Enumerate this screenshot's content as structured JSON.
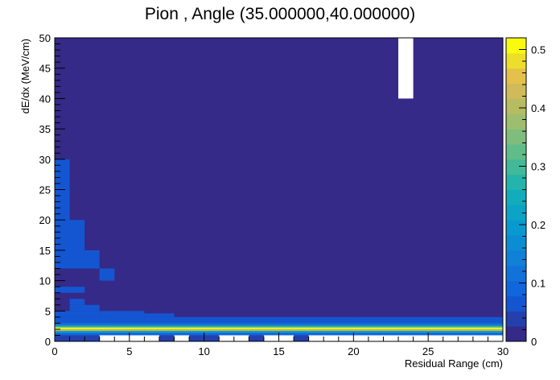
{
  "chart_data": {
    "type": "heatmap",
    "title": "Pion , Angle (35.000000,40.000000)",
    "xlabel": "Residual Range (cm)",
    "ylabel": "dE/dx (MeV/cm)",
    "xlim": [
      0,
      30
    ],
    "ylim": [
      0,
      50
    ],
    "x_bin_width": 1,
    "y_bin_width": 1,
    "x_ticks": [
      "0",
      "5",
      "10",
      "15",
      "20",
      "25",
      "30"
    ],
    "y_ticks": [
      "0",
      "5",
      "10",
      "15",
      "20",
      "25",
      "30",
      "35",
      "40",
      "45",
      "50"
    ],
    "colorbar": {
      "range": [
        0,
        0.52
      ],
      "ticks": [
        "0",
        "0.1",
        "0.2",
        "0.3",
        "0.4",
        "0.5"
      ],
      "palette": "parula",
      "levels": 20
    },
    "background_value": 0.012,
    "empty_bins": [
      {
        "x": [
          23,
          24
        ],
        "y": [
          40,
          50
        ]
      },
      {
        "x": [
          8,
          9
        ],
        "y": [
          0,
          1
        ]
      },
      {
        "x": [
          11,
          13
        ],
        "y": [
          0,
          1
        ]
      },
      {
        "x": [
          3,
          7
        ],
        "y": [
          0,
          1
        ]
      },
      {
        "x": [
          14,
          16
        ],
        "y": [
          0,
          1
        ]
      },
      {
        "x": [
          17,
          30
        ],
        "y": [
          0,
          1
        ]
      }
    ],
    "cells": [
      {
        "x": [
          0,
          1
        ],
        "y": [
          20,
          30
        ],
        "v": 0.07
      },
      {
        "x": [
          0,
          2
        ],
        "y": [
          13,
          20
        ],
        "v": 0.07
      },
      {
        "x": [
          0,
          3
        ],
        "y": [
          12,
          13
        ],
        "v": 0.07
      },
      {
        "x": [
          2,
          3
        ],
        "y": [
          13,
          15
        ],
        "v": 0.07
      },
      {
        "x": [
          3,
          4
        ],
        "y": [
          10,
          12
        ],
        "v": 0.07
      },
      {
        "x": [
          0,
          2
        ],
        "y": [
          8,
          9
        ],
        "v": 0.07
      },
      {
        "x": [
          1,
          2
        ],
        "y": [
          6,
          7
        ],
        "v": 0.07
      },
      {
        "x": [
          1,
          3
        ],
        "y": [
          5,
          6
        ],
        "v": 0.07
      },
      {
        "x": [
          0,
          3
        ],
        "y": [
          4,
          5
        ],
        "v": 0.06
      },
      {
        "x": [
          0,
          4
        ],
        "y": [
          3,
          4
        ],
        "v": 0.06
      },
      {
        "x": [
          3,
          6
        ],
        "y": [
          4,
          5
        ],
        "v": 0.07
      },
      {
        "x": [
          4,
          8
        ],
        "y": [
          4,
          4.6
        ],
        "v": 0.07
      },
      {
        "x": [
          0,
          8
        ],
        "y": [
          3,
          4
        ],
        "v": 0.07
      },
      {
        "x": [
          8,
          20
        ],
        "y": [
          3,
          4
        ],
        "v": 0.06
      },
      {
        "x": [
          20,
          30
        ],
        "y": [
          3,
          4
        ],
        "v": 0.055
      },
      {
        "x": [
          0,
          30
        ],
        "y": [
          2.6,
          3
        ],
        "v": 0.12
      },
      {
        "x": [
          0,
          30
        ],
        "y": [
          2.3,
          2.6
        ],
        "v": 0.27
      },
      {
        "x": [
          0,
          30
        ],
        "y": [
          2,
          2.3
        ],
        "v": 0.5
      },
      {
        "x": [
          0,
          30
        ],
        "y": [
          1.7,
          2
        ],
        "v": 0.41
      },
      {
        "x": [
          0,
          30
        ],
        "y": [
          1.4,
          1.7
        ],
        "v": 0.22
      },
      {
        "x": [
          0,
          30
        ],
        "y": [
          1,
          1.4
        ],
        "v": 0.08
      },
      {
        "x": [
          0,
          3
        ],
        "y": [
          0,
          1
        ],
        "v": 0.03
      },
      {
        "x": [
          7,
          8
        ],
        "y": [
          0,
          1
        ],
        "v": 0.03
      },
      {
        "x": [
          9,
          11
        ],
        "y": [
          0,
          1
        ],
        "v": 0.03
      },
      {
        "x": [
          13,
          14
        ],
        "y": [
          0,
          1
        ],
        "v": 0.03
      },
      {
        "x": [
          16,
          17
        ],
        "y": [
          0,
          1
        ],
        "v": 0.03
      }
    ]
  }
}
